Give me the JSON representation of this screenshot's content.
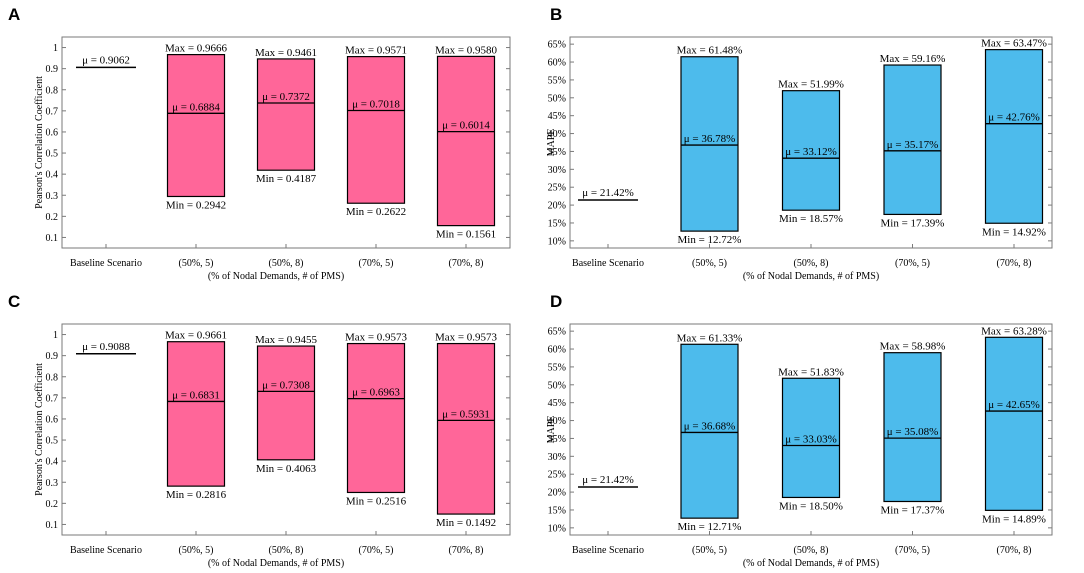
{
  "chart_data": [
    {
      "panel": "A",
      "type": "floating-bar",
      "ylabel": "Pearson's Correlation Coefficient",
      "xlabel": "(% of Nodal Demands, # of PMS)",
      "categories": [
        "Baseline Scenario",
        "(50%, 5)",
        "(50%, 8)",
        "(70%, 5)",
        "(70%, 8)"
      ],
      "ylim": [
        0.05,
        1.05
      ],
      "yticks": [
        0.1,
        0.2,
        0.3,
        0.4,
        0.5,
        0.6,
        0.7,
        0.8,
        0.9,
        1
      ],
      "ytick_labels": [
        "0.1",
        "0.2",
        "0.3",
        "0.4",
        "0.5",
        "0.6",
        "0.7",
        "0.8",
        "0.9",
        "1"
      ],
      "bar_color": "#ff6699",
      "baseline": {
        "mean": 0.9062,
        "label": "μ = 0.9062"
      },
      "bars": [
        {
          "category": "(50%, 5)",
          "max": 0.9666,
          "mean": 0.6884,
          "min": 0.2942,
          "max_label": "Max = 0.9666",
          "mean_label": "μ = 0.6884",
          "min_label": "Min = 0.2942"
        },
        {
          "category": "(50%, 8)",
          "max": 0.9461,
          "mean": 0.7372,
          "min": 0.4187,
          "max_label": "Max = 0.9461",
          "mean_label": "μ = 0.7372",
          "min_label": "Min = 0.4187"
        },
        {
          "category": "(70%, 5)",
          "max": 0.9571,
          "mean": 0.7018,
          "min": 0.2622,
          "max_label": "Max = 0.9571",
          "mean_label": "μ = 0.7018",
          "min_label": "Min = 0.2622"
        },
        {
          "category": "(70%, 8)",
          "max": 0.958,
          "mean": 0.6014,
          "min": 0.1561,
          "max_label": "Max = 0.9580",
          "mean_label": "μ = 0.6014",
          "min_label": "Min = 0.1561"
        }
      ]
    },
    {
      "panel": "B",
      "type": "floating-bar",
      "ylabel": "MAPE",
      "xlabel": "(% of Nodal Demands, # of PMS)",
      "categories": [
        "Baseline Scenario",
        "(50%, 5)",
        "(50%, 8)",
        "(70%, 5)",
        "(70%, 8)"
      ],
      "ylim": [
        8,
        67
      ],
      "yticks": [
        10,
        15,
        20,
        25,
        30,
        35,
        40,
        45,
        50,
        55,
        60,
        65
      ],
      "ytick_labels": [
        "10%",
        "15%",
        "20%",
        "25%",
        "30%",
        "35%",
        "40%",
        "45%",
        "50%",
        "55%",
        "60%",
        "65%"
      ],
      "bar_color": "#4dbbec",
      "baseline": {
        "mean": 21.42,
        "label": "μ = 21.42%"
      },
      "bars": [
        {
          "category": "(50%, 5)",
          "max": 61.48,
          "mean": 36.78,
          "min": 12.72,
          "max_label": "Max = 61.48%",
          "mean_label": "μ = 36.78%",
          "min_label": "Min = 12.72%"
        },
        {
          "category": "(50%, 8)",
          "max": 51.99,
          "mean": 33.12,
          "min": 18.57,
          "max_label": "Max = 51.99%",
          "mean_label": "μ = 33.12%",
          "min_label": "Min = 18.57%"
        },
        {
          "category": "(70%, 5)",
          "max": 59.16,
          "mean": 35.17,
          "min": 17.39,
          "max_label": "Max = 59.16%",
          "mean_label": "μ = 35.17%",
          "min_label": "Min = 17.39%"
        },
        {
          "category": "(70%, 8)",
          "max": 63.47,
          "mean": 42.76,
          "min": 14.92,
          "max_label": "Max = 63.47%",
          "mean_label": "μ = 42.76%",
          "min_label": "Min = 14.92%"
        }
      ]
    },
    {
      "panel": "C",
      "type": "floating-bar",
      "ylabel": "Pearson's Correlation Coefficient",
      "xlabel": "(% of Nodal Demands, # of PMS)",
      "categories": [
        "Baseline Scenario",
        "(50%, 5)",
        "(50%, 8)",
        "(70%, 5)",
        "(70%, 8)"
      ],
      "ylim": [
        0.05,
        1.05
      ],
      "yticks": [
        0.1,
        0.2,
        0.3,
        0.4,
        0.5,
        0.6,
        0.7,
        0.8,
        0.9,
        1
      ],
      "ytick_labels": [
        "0.1",
        "0.2",
        "0.3",
        "0.4",
        "0.5",
        "0.6",
        "0.7",
        "0.8",
        "0.9",
        "1"
      ],
      "bar_color": "#ff6699",
      "baseline": {
        "mean": 0.9088,
        "label": "μ = 0.9088"
      },
      "bars": [
        {
          "category": "(50%, 5)",
          "max": 0.9661,
          "mean": 0.6831,
          "min": 0.2816,
          "max_label": "Max = 0.9661",
          "mean_label": "μ = 0.6831",
          "min_label": "Min = 0.2816"
        },
        {
          "category": "(50%, 8)",
          "max": 0.9455,
          "mean": 0.7308,
          "min": 0.4063,
          "max_label": "Max = 0.9455",
          "mean_label": "μ = 0.7308",
          "min_label": "Min = 0.4063"
        },
        {
          "category": "(70%, 5)",
          "max": 0.9573,
          "mean": 0.6963,
          "min": 0.2516,
          "max_label": "Max = 0.9573",
          "mean_label": "μ = 0.6963",
          "min_label": "Min = 0.2516"
        },
        {
          "category": "(70%, 8)",
          "max": 0.9573,
          "mean": 0.5931,
          "min": 0.1492,
          "max_label": "Max = 0.9573",
          "mean_label": "μ = 0.5931",
          "min_label": "Min = 0.1492"
        }
      ]
    },
    {
      "panel": "D",
      "type": "floating-bar",
      "ylabel": "MAPE",
      "xlabel": "(% of Nodal Demands, # of PMS)",
      "categories": [
        "Baseline Scenario",
        "(50%, 5)",
        "(50%, 8)",
        "(70%, 5)",
        "(70%, 8)"
      ],
      "ylim": [
        8,
        67
      ],
      "yticks": [
        10,
        15,
        20,
        25,
        30,
        35,
        40,
        45,
        50,
        55,
        60,
        65
      ],
      "ytick_labels": [
        "10%",
        "15%",
        "20%",
        "25%",
        "30%",
        "35%",
        "40%",
        "45%",
        "50%",
        "55%",
        "60%",
        "65%"
      ],
      "bar_color": "#4dbbec",
      "baseline": {
        "mean": 21.42,
        "label": "μ = 21.42%"
      },
      "bars": [
        {
          "category": "(50%, 5)",
          "max": 61.33,
          "mean": 36.68,
          "min": 12.71,
          "max_label": "Max = 61.33%",
          "mean_label": "μ = 36.68%",
          "min_label": "Min = 12.71%"
        },
        {
          "category": "(50%, 8)",
          "max": 51.83,
          "mean": 33.03,
          "min": 18.5,
          "max_label": "Max = 51.83%",
          "mean_label": "μ = 33.03%",
          "min_label": "Min = 18.50%"
        },
        {
          "category": "(70%, 5)",
          "max": 58.98,
          "mean": 35.08,
          "min": 17.37,
          "max_label": "Max = 58.98%",
          "mean_label": "μ = 35.08%",
          "min_label": "Min = 17.37%"
        },
        {
          "category": "(70%, 8)",
          "max": 63.28,
          "mean": 42.65,
          "min": 14.89,
          "max_label": "Max = 63.28%",
          "mean_label": "μ = 42.65%",
          "min_label": "Min = 14.89%"
        }
      ]
    }
  ]
}
